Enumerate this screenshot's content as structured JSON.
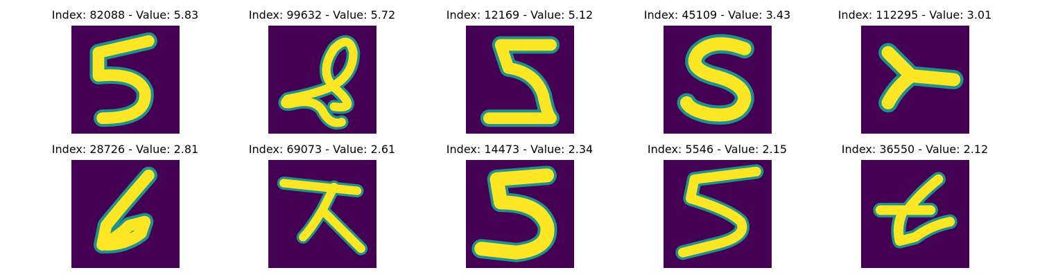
{
  "figure": {
    "colormap": {
      "background": "#440154",
      "mid": "#21918c",
      "bright": "#fde725"
    },
    "panels": [
      {
        "title": "Index: 82088 - Value: 5.83",
        "icon": "handwritten-5-digit"
      },
      {
        "title": "Index: 99632 - Value: 5.72",
        "icon": "handwritten-looped-scribble"
      },
      {
        "title": "Index: 12169 - Value: 5.12",
        "icon": "handwritten-z-like-digit"
      },
      {
        "title": "Index: 45109 - Value: 3.43",
        "icon": "handwritten-s-digit"
      },
      {
        "title": "Index: 112295 - Value: 3.01",
        "icon": "handwritten-y-like-shape"
      },
      {
        "title": "Index: 28726 - Value: 2.81",
        "icon": "handwritten-slanted-stroke"
      },
      {
        "title": "Index: 69073 - Value: 2.61",
        "icon": "handwritten-crossed-strokes"
      },
      {
        "title": "Index: 14473 - Value: 2.34",
        "icon": "handwritten-5-digit"
      },
      {
        "title": "Index: 5546 - Value: 2.15",
        "icon": "handwritten-5-digit"
      },
      {
        "title": "Index: 36550 - Value: 2.12",
        "icon": "handwritten-crossed-strokes"
      }
    ]
  }
}
